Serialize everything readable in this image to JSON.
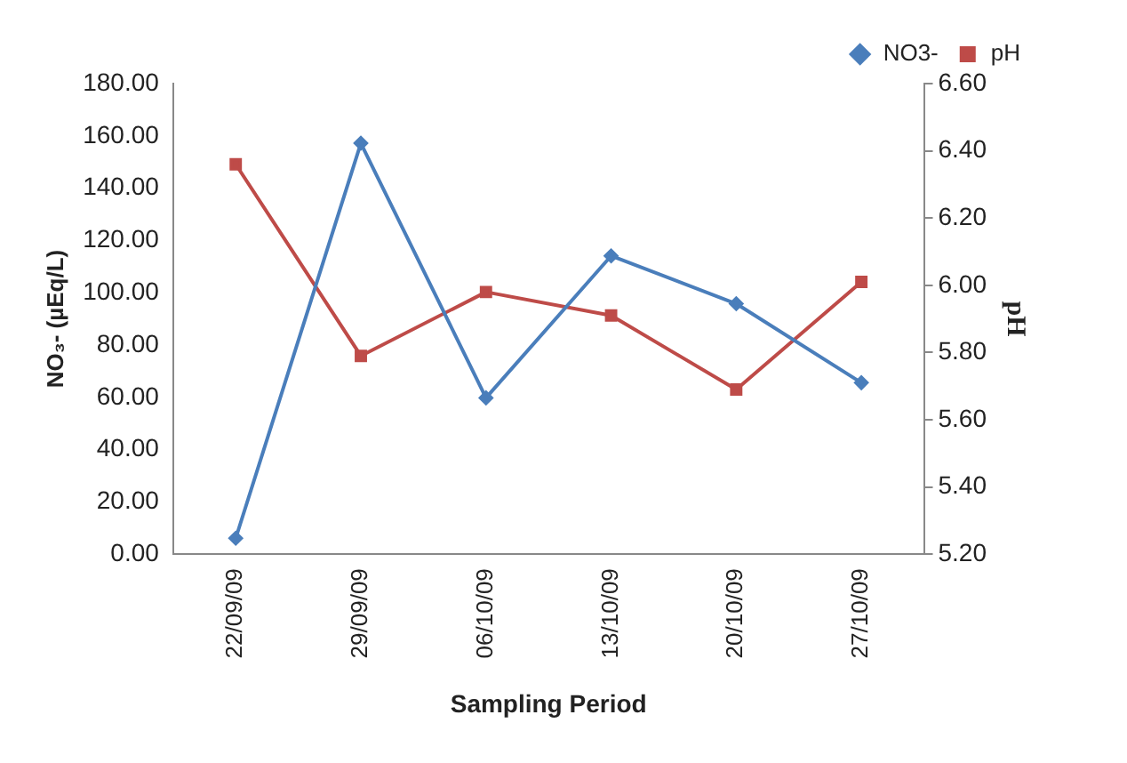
{
  "chart_data": {
    "type": "line",
    "xlabel": "Sampling Period",
    "ylabel": "NO₃- (µEq/L)",
    "y2label": "pH",
    "categories": [
      "22/09/09",
      "29/09/09",
      "06/10/09",
      "13/10/09",
      "20/10/09",
      "27/10/09"
    ],
    "series": [
      {
        "name": "NO3-",
        "color": "#4a7ebb",
        "marker": "diamond",
        "values": [
          6.1,
          157.2,
          59.8,
          114.1,
          95.8,
          65.6
        ]
      },
      {
        "name": "pH",
        "color": "#be4b48",
        "marker": "square",
        "axis": "y2",
        "values": [
          6.36,
          5.79,
          5.98,
          5.91,
          5.69,
          6.01
        ]
      }
    ],
    "ylim": [
      0,
      180
    ],
    "yticks": [
      {
        "value": 0,
        "label": "0.00"
      },
      {
        "value": 20,
        "label": "20.00"
      },
      {
        "value": 40,
        "label": "40.00"
      },
      {
        "value": 60,
        "label": "60.00"
      },
      {
        "value": 80,
        "label": "80.00"
      },
      {
        "value": 100,
        "label": "100.00"
      },
      {
        "value": 120,
        "label": "120.00"
      },
      {
        "value": 140,
        "label": "140.00"
      },
      {
        "value": 160,
        "label": "160.00"
      },
      {
        "value": 180,
        "label": "180.00"
      }
    ],
    "y2lim": [
      5.2,
      6.6
    ],
    "y2ticks": [
      {
        "value": 5.2,
        "label": "5.20"
      },
      {
        "value": 5.4,
        "label": "5.40"
      },
      {
        "value": 5.6,
        "label": "5.60"
      },
      {
        "value": 5.8,
        "label": "5.80"
      },
      {
        "value": 6.0,
        "label": "6.00"
      },
      {
        "value": 6.2,
        "label": "6.20"
      },
      {
        "value": 6.4,
        "label": "6.40"
      },
      {
        "value": 6.6,
        "label": "6.60"
      }
    ],
    "grid": false,
    "legend": "top right",
    "line_style": "solid"
  }
}
